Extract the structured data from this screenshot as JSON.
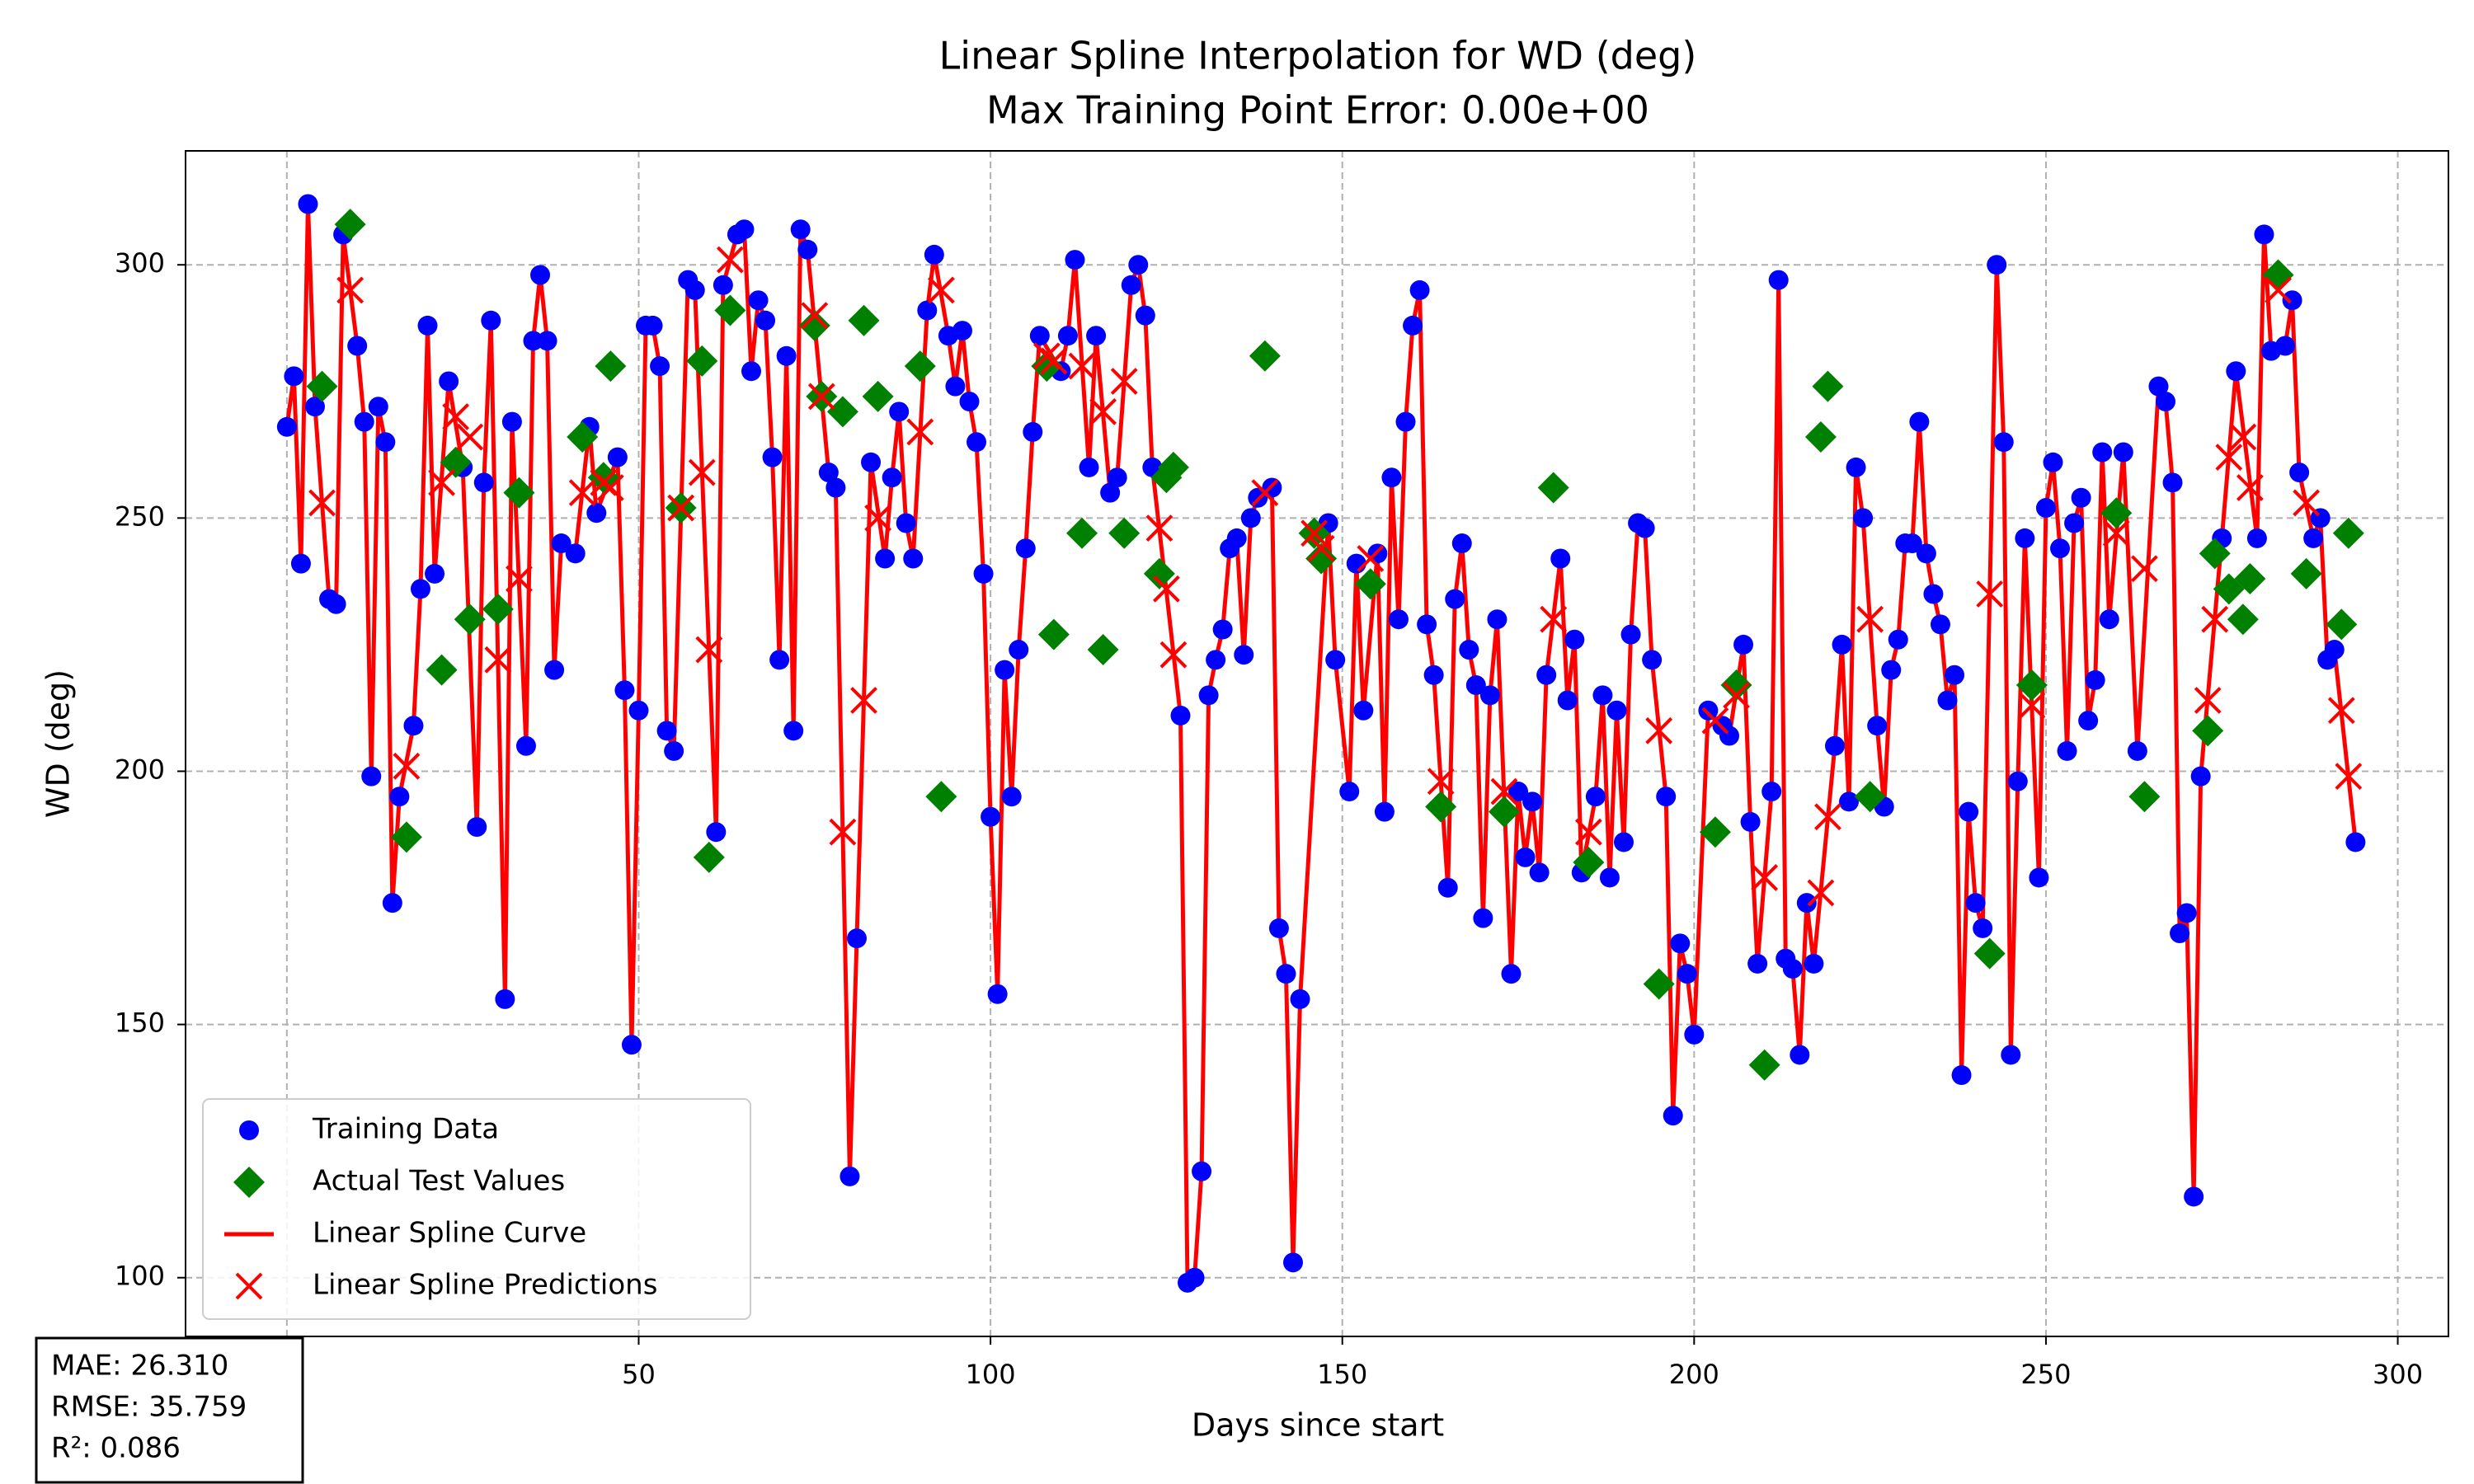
{
  "chart_data": {
    "type": "scatter",
    "title": "Linear Spline Interpolation for WD (deg)",
    "subtitle": "Max Training Point Error: 0.00e+00",
    "xlabel": "Days since start",
    "ylabel": "WD (deg)",
    "xlim": [
      -14.4,
      307.2
    ],
    "ylim": [
      88.4,
      322.5
    ],
    "xticks": [
      0,
      50,
      100,
      150,
      200,
      250,
      300
    ],
    "yticks": [
      100,
      150,
      200,
      250,
      300
    ],
    "grid": true,
    "legend": "lower left",
    "series": [
      {
        "name": "Training Data",
        "color": "#0000ff",
        "marker": "circle",
        "x": [
          0,
          1,
          2,
          3,
          4,
          6,
          7,
          8,
          10,
          11,
          12,
          13,
          14,
          15,
          16,
          18,
          19,
          20,
          21,
          23,
          25,
          27,
          28,
          29,
          31,
          32,
          34,
          35,
          36,
          37,
          38,
          39,
          41,
          43,
          44,
          47,
          48,
          49,
          50,
          51,
          52,
          53,
          54,
          55,
          57,
          58,
          61,
          62,
          64,
          65,
          66,
          67,
          68,
          69,
          70,
          71,
          72,
          73,
          74,
          77,
          78,
          80,
          81,
          83,
          85,
          86,
          87,
          88,
          89,
          91,
          92,
          94,
          95,
          96,
          97,
          98,
          99,
          100,
          101,
          102,
          103,
          104,
          105,
          106,
          107,
          110,
          111,
          112,
          114,
          115,
          117,
          118,
          120,
          121,
          122,
          123,
          127,
          128,
          129,
          130,
          131,
          132,
          133,
          134,
          135,
          136,
          137,
          138,
          140,
          141,
          142,
          143,
          144,
          148,
          149,
          151,
          152,
          153,
          155,
          156,
          157,
          158,
          159,
          160,
          161,
          162,
          163,
          165,
          166,
          167,
          168,
          169,
          170,
          171,
          172,
          174,
          175,
          176,
          177,
          178,
          179,
          181,
          182,
          183,
          184,
          186,
          187,
          188,
          189,
          190,
          191,
          192,
          193,
          194,
          196,
          197,
          198,
          199,
          200,
          202,
          204,
          205,
          207,
          208,
          209,
          211,
          212,
          213,
          214,
          215,
          216,
          217,
          220,
          221,
          222,
          223,
          224,
          226,
          227,
          228,
          229,
          230,
          231,
          232,
          233,
          234,
          235,
          236,
          237,
          238,
          239,
          240,
          241,
          243,
          244,
          245,
          246,
          247,
          249,
          250,
          251,
          252,
          253,
          254,
          255,
          256,
          257,
          258,
          259,
          261,
          263,
          266,
          267,
          268,
          269,
          270,
          271,
          272,
          275,
          277,
          280,
          281,
          282,
          284,
          285,
          286,
          288,
          289,
          290,
          291,
          294
        ],
        "values": [
          268,
          278,
          241,
          312,
          272,
          234,
          233,
          306,
          284,
          269,
          199,
          272,
          265,
          174,
          195,
          209,
          236,
          288,
          239,
          277,
          260,
          189,
          257,
          289,
          155,
          269,
          205,
          285,
          298,
          285,
          220,
          245,
          243,
          268,
          251,
          262,
          216,
          146,
          212,
          288,
          288,
          280,
          208,
          204,
          297,
          295,
          188,
          296,
          306,
          307,
          279,
          293,
          289,
          262,
          222,
          282,
          208,
          307,
          303,
          259,
          256,
          120,
          167,
          261,
          242,
          258,
          271,
          249,
          242,
          291,
          302,
          286,
          276,
          287,
          273,
          265,
          239,
          191,
          156,
          220,
          195,
          224,
          244,
          267,
          286,
          279,
          286,
          301,
          260,
          286,
          255,
          258,
          296,
          300,
          290,
          260,
          211,
          99,
          100,
          121,
          215,
          222,
          228,
          244,
          246,
          223,
          250,
          254,
          256,
          169,
          160,
          103,
          155,
          249,
          222,
          196,
          241,
          212,
          243,
          192,
          258,
          230,
          269,
          288,
          295,
          229,
          219,
          177,
          234,
          245,
          224,
          217,
          171,
          215,
          230,
          160,
          196,
          183,
          194,
          180,
          219,
          242,
          214,
          226,
          180,
          195,
          215,
          179,
          212,
          186,
          227,
          249,
          248,
          222,
          195,
          132,
          166,
          160,
          148,
          212,
          209,
          207,
          225,
          190,
          162,
          196,
          297,
          163,
          161,
          144,
          174,
          162,
          205,
          225,
          194,
          260,
          250,
          209,
          193,
          220,
          226,
          245,
          245,
          269,
          243,
          235,
          229,
          214,
          219,
          140,
          192,
          174,
          169,
          300,
          265,
          144,
          198,
          246,
          179,
          252,
          261,
          244,
          204,
          249,
          254,
          210,
          218,
          263,
          230,
          263,
          204,
          276,
          273,
          257,
          168,
          172,
          116,
          199,
          246,
          279,
          246,
          306,
          283,
          284,
          293,
          259,
          246,
          250,
          222,
          224,
          186
        ]
      },
      {
        "name": "Actual Test Values",
        "color": "#008000",
        "marker": "diamond",
        "x": [
          5,
          9,
          17,
          22,
          24,
          26,
          30,
          33,
          42,
          45,
          46,
          56,
          59,
          60,
          63,
          75,
          76,
          79,
          82,
          84,
          90,
          93,
          108,
          109,
          113,
          116,
          119,
          124,
          125,
          126,
          139,
          146,
          147,
          154,
          164,
          173,
          180,
          185,
          195,
          203,
          206,
          210,
          218,
          219,
          225,
          242,
          248,
          260,
          264,
          273,
          274,
          276,
          278,
          279,
          283,
          287,
          292,
          293
        ],
        "values": [
          276,
          308,
          187,
          220,
          261,
          230,
          232,
          255,
          266,
          258,
          280,
          252,
          281,
          183,
          291,
          288,
          274,
          271,
          289,
          274,
          280,
          195,
          280,
          227,
          247,
          224,
          247,
          239,
          258,
          260,
          282,
          247,
          242,
          237,
          193,
          192,
          256,
          182,
          158,
          188,
          217,
          142,
          266,
          276,
          195,
          164,
          217,
          251,
          195,
          208,
          243,
          236,
          230,
          238,
          298,
          239,
          229,
          247
        ]
      },
      {
        "name": "Linear Spline Curve",
        "color": "#ff0000",
        "marker": "line"
      },
      {
        "name": "Linear Spline Predictions",
        "color": "#ff0000",
        "marker": "x",
        "x": [
          5,
          9,
          17,
          22,
          24,
          26,
          30,
          33,
          42,
          45,
          46,
          56,
          59,
          60,
          63,
          75,
          76,
          79,
          82,
          84,
          90,
          93,
          108,
          109,
          113,
          116,
          119,
          124,
          125,
          126,
          139,
          146,
          147,
          154,
          164,
          173,
          180,
          185,
          195,
          203,
          206,
          210,
          218,
          219,
          225,
          242,
          248,
          260,
          264,
          273,
          274,
          276,
          278,
          279,
          283,
          287,
          292,
          293
        ],
        "values": [
          253,
          295,
          201,
          257,
          270,
          266,
          222,
          238,
          255,
          257,
          256,
          252,
          259,
          224,
          301,
          290,
          274,
          188,
          214,
          250,
          267,
          295,
          282,
          281,
          280,
          271,
          277,
          248,
          236,
          223,
          255,
          247,
          244,
          242,
          198,
          196,
          230,
          188,
          208,
          210,
          215,
          179,
          176,
          191,
          230,
          235,
          213,
          247,
          240,
          214,
          230,
          262,
          266,
          256,
          295,
          253,
          212,
          199
        ]
      }
    ],
    "metrics": [
      "MAE: 26.310",
      "RMSE: 35.759",
      "R²: 0.086"
    ]
  }
}
